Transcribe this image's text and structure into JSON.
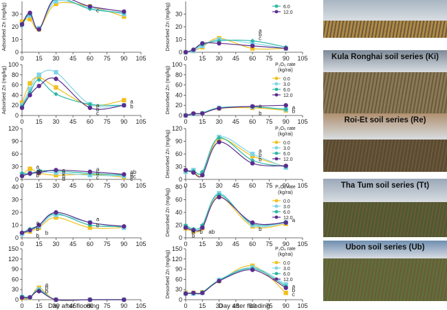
{
  "shared": {
    "xlabel": "Day after flooding",
    "legend_title_line1": "P₂O₅ rate",
    "legend_title_line2": "(kg/rai)",
    "legend_entries": [
      "0.0",
      "3.0",
      "6.0",
      "12.0"
    ],
    "legend_colors": [
      "#f2c01e",
      "#7fd3e8",
      "#2bb7a6",
      "#5b2d8e"
    ],
    "xticks": [
      0,
      15,
      30,
      45,
      60,
      75,
      90,
      105
    ]
  },
  "soils": [
    {
      "label": "",
      "photo": {
        "sky": "#a8b6c2",
        "ground": "#b08a48",
        "horizon": 0.55
      }
    },
    {
      "label": "Kula Ronghai soil series (Ki)",
      "photo": {
        "sky": "#7d8a98",
        "ground": "#8a7a58",
        "horizon": 0.35
      }
    },
    {
      "label": "Roi-Et soil series (Re)",
      "photo": {
        "sky": "#b09070",
        "ground": "#5a4a32",
        "horizon": 0.45
      }
    },
    {
      "label": "Tha Tum soil series (Tt)",
      "photo": {
        "sky": "#9aa8b8",
        "ground": "#4e5a30",
        "horizon": 0.4
      }
    },
    {
      "label": "Ubon soil series (Ub)",
      "photo": {
        "sky": "#6f8fb0",
        "ground": "#5f6f3a",
        "horizon": 0.3
      }
    }
  ],
  "chart_data": [
    {
      "type": "line",
      "ylabel": "Adsorbed Zn (mg/kg)",
      "ylim": [
        0,
        40
      ],
      "yticks": [
        0,
        10,
        20,
        30
      ],
      "x": [
        0,
        7,
        15,
        30,
        60,
        90
      ],
      "series": [
        {
          "values": [
            24,
            26,
            18,
            38,
            36,
            28
          ]
        },
        {
          "values": [
            22,
            29,
            19,
            40,
            35,
            30
          ]
        },
        {
          "values": [
            21,
            30,
            18,
            42,
            34,
            31
          ]
        },
        {
          "values": [
            22,
            31,
            18,
            43,
            36,
            32
          ]
        }
      ],
      "letters": [
        {
          "x": 60,
          "y": 33,
          "t": "c"
        }
      ],
      "legend": false
    },
    {
      "type": "line",
      "ylabel": "Desorbed Zn (mg/kg)",
      "ylim": [
        0,
        40
      ],
      "yticks": [
        0,
        10,
        20,
        30
      ],
      "x": [
        0,
        7,
        15,
        30,
        60,
        90
      ],
      "series": [
        {
          "values": [
            0,
            1,
            4,
            11,
            3,
            3
          ]
        },
        {
          "values": [
            0,
            1,
            5,
            10,
            7,
            3
          ]
        },
        {
          "values": [
            0,
            2,
            6,
            9,
            9,
            4
          ]
        },
        {
          "values": [
            0,
            2,
            7,
            7,
            5,
            3
          ]
        }
      ],
      "letters": [
        {
          "x": 60,
          "y": 17,
          "t": "a"
        },
        {
          "x": 60,
          "y": 14,
          "t": "b"
        },
        {
          "x": 60,
          "y": 11,
          "t": "c"
        }
      ],
      "legend": true,
      "legend_visible": [
        "6.0",
        "12.0"
      ]
    },
    {
      "type": "line",
      "ylabel": "Adsorbed Zn (mg/kg)",
      "ylim": [
        0,
        100
      ],
      "yticks": [
        0,
        20,
        40,
        60,
        80,
        100
      ],
      "x": [
        0,
        7,
        15,
        30,
        60,
        90
      ],
      "series": [
        {
          "values": [
            25,
            63,
            75,
            55,
            20,
            30
          ]
        },
        {
          "values": [
            20,
            52,
            80,
            85,
            22,
            20
          ]
        },
        {
          "values": [
            18,
            45,
            70,
            42,
            22,
            20
          ]
        },
        {
          "values": [
            15,
            40,
            58,
            72,
            15,
            20
          ]
        }
      ],
      "letters": [
        {
          "x": 60,
          "y": 20,
          "t": "a"
        },
        {
          "x": 60,
          "y": 12,
          "t": "b"
        },
        {
          "x": 60,
          "y": 5,
          "t": "c"
        },
        {
          "x": 90,
          "y": 28,
          "t": "a"
        },
        {
          "x": 90,
          "y": 18,
          "t": "b"
        }
      ],
      "legend": false
    },
    {
      "type": "line",
      "ylabel": "Desorbed Zn (mg/kg)",
      "ylim": [
        0,
        100
      ],
      "yticks": [
        0,
        20,
        40,
        60,
        80,
        100
      ],
      "x": [
        0,
        7,
        15,
        30,
        60,
        90
      ],
      "series": [
        {
          "values": [
            0,
            3,
            4,
            14,
            15,
            10
          ]
        },
        {
          "values": [
            0,
            3,
            4,
            15,
            17,
            12
          ]
        },
        {
          "values": [
            0,
            3,
            5,
            15,
            17,
            12
          ]
        },
        {
          "values": [
            0,
            4,
            4,
            14,
            18,
            20
          ]
        }
      ],
      "letters": [
        {
          "x": 60,
          "y": 19,
          "t": "a"
        },
        {
          "x": 60,
          "y": 5,
          "t": "b"
        },
        {
          "x": 90,
          "y": 16,
          "t": "a"
        },
        {
          "x": 90,
          "y": 9,
          "t": "b"
        }
      ],
      "legend": true
    },
    {
      "type": "line",
      "ylabel": "",
      "ylim": [
        0,
        120
      ],
      "yticks": [
        0,
        30,
        60,
        90,
        120
      ],
      "x": [
        0,
        7,
        15,
        30,
        60,
        90
      ],
      "series": [
        {
          "values": [
            10,
            25,
            15,
            10,
            12,
            5
          ]
        },
        {
          "values": [
            12,
            15,
            18,
            16,
            10,
            8
          ]
        },
        {
          "values": [
            15,
            12,
            20,
            20,
            14,
            10
          ]
        },
        {
          "values": [
            8,
            14,
            16,
            22,
            18,
            12
          ]
        }
      ],
      "letters": [
        {
          "x": 7,
          "y": 30,
          "t": "a"
        },
        {
          "x": 7,
          "y": 20,
          "t": "ab"
        },
        {
          "x": 7,
          "y": 10,
          "t": "b"
        },
        {
          "x": 30,
          "y": 22,
          "t": "a"
        },
        {
          "x": 30,
          "y": 16,
          "t": "b"
        },
        {
          "x": 30,
          "y": 8,
          "t": "b"
        },
        {
          "x": 30,
          "y": 2,
          "t": "d"
        },
        {
          "x": 60,
          "y": 24,
          "t": "a"
        },
        {
          "x": 60,
          "y": 15,
          "t": "b"
        },
        {
          "x": 60,
          "y": 5,
          "t": "c"
        },
        {
          "x": 90,
          "y": 18,
          "t": "ab"
        },
        {
          "x": 90,
          "y": 12,
          "t": "b"
        },
        {
          "x": 90,
          "y": 7,
          "t": "bc"
        },
        {
          "x": 90,
          "y": 2,
          "t": "c"
        }
      ],
      "legend": false
    },
    {
      "type": "line",
      "ylabel": "Desorbed Zn (mg/kg)",
      "ylim": [
        0,
        120
      ],
      "yticks": [
        0,
        30,
        60,
        90,
        120
      ],
      "x": [
        0,
        7,
        15,
        30,
        60,
        90
      ],
      "series": [
        {
          "values": [
            20,
            18,
            12,
            95,
            55,
            30
          ]
        },
        {
          "values": [
            18,
            22,
            15,
            100,
            60,
            28
          ]
        },
        {
          "values": [
            20,
            20,
            18,
            98,
            45,
            30
          ]
        },
        {
          "values": [
            22,
            16,
            10,
            88,
            38,
            32
          ]
        }
      ],
      "letters": [
        {
          "x": 60,
          "y": 68,
          "t": "a"
        },
        {
          "x": 60,
          "y": 58,
          "t": "b"
        },
        {
          "x": 60,
          "y": 48,
          "t": "b"
        }
      ],
      "legend": true
    },
    {
      "type": "line",
      "ylabel": "",
      "ylim": [
        0,
        40
      ],
      "yticks": [
        0,
        10,
        20,
        30,
        40
      ],
      "x": [
        0,
        7,
        15,
        30,
        60,
        90
      ],
      "series": [
        {
          "values": [
            3,
            5,
            8,
            16,
            8,
            8
          ]
        },
        {
          "values": [
            3,
            6,
            9,
            18,
            12,
            8
          ]
        },
        {
          "values": [
            4,
            7,
            10,
            19,
            10,
            9
          ]
        },
        {
          "values": [
            4,
            6,
            10,
            20,
            12,
            9
          ]
        }
      ],
      "letters": [
        {
          "x": 7,
          "y": 12,
          "t": "a"
        },
        {
          "x": 7,
          "y": 7,
          "t": "b"
        },
        {
          "x": 7,
          "y": 2,
          "t": "b"
        },
        {
          "x": 15,
          "y": 4,
          "t": "b"
        },
        {
          "x": 60,
          "y": 15,
          "t": "a"
        },
        {
          "x": 60,
          "y": 10,
          "t": "b"
        }
      ],
      "legend": false
    },
    {
      "type": "line",
      "ylabel": "Desorbed Zn (mg/kg)",
      "ylim": [
        0,
        80
      ],
      "yticks": [
        0,
        20,
        40,
        60,
        80
      ],
      "x": [
        0,
        7,
        15,
        30,
        60,
        90
      ],
      "series": [
        {
          "values": [
            15,
            10,
            15,
            65,
            18,
            22
          ]
        },
        {
          "values": [
            18,
            12,
            18,
            70,
            20,
            24
          ]
        },
        {
          "values": [
            20,
            14,
            20,
            68,
            22,
            25
          ]
        },
        {
          "values": [
            16,
            12,
            16,
            64,
            24,
            24
          ]
        }
      ],
      "letters": [
        {
          "x": 0,
          "y": 10,
          "t": "a"
        },
        {
          "x": 0,
          "y": 4,
          "t": "b"
        },
        {
          "x": 7,
          "y": 10,
          "t": "b"
        },
        {
          "x": 15,
          "y": 10,
          "t": "ab"
        },
        {
          "x": 60,
          "y": 14,
          "t": "b"
        },
        {
          "x": 90,
          "y": 28,
          "t": "a"
        }
      ],
      "legend": true
    },
    {
      "type": "line",
      "ylabel": "",
      "ylim": [
        0,
        150
      ],
      "yticks": [
        0,
        30,
        60,
        90,
        120,
        150
      ],
      "x": [
        0,
        7,
        15,
        30,
        60,
        90
      ],
      "series": [
        {
          "values": [
            5,
            5,
            35,
            0,
            0,
            0
          ]
        },
        {
          "values": [
            8,
            6,
            30,
            0,
            0,
            0
          ]
        },
        {
          "values": [
            10,
            8,
            28,
            0,
            0,
            0
          ]
        },
        {
          "values": [
            6,
            7,
            25,
            0,
            0,
            0
          ]
        }
      ],
      "letters": [
        {
          "x": 15,
          "y": 45,
          "t": "a"
        },
        {
          "x": 15,
          "y": 35,
          "t": "b"
        },
        {
          "x": 15,
          "y": 25,
          "t": "b"
        }
      ],
      "legend": false
    },
    {
      "type": "line",
      "ylabel": "Desorbed Zn (mg/kg)",
      "ylim": [
        0,
        150
      ],
      "yticks": [
        0,
        30,
        60,
        90,
        120,
        150
      ],
      "x": [
        0,
        7,
        15,
        30,
        60,
        90
      ],
      "series": [
        {
          "values": [
            20,
            20,
            22,
            55,
            100,
            20
          ]
        },
        {
          "values": [
            18,
            18,
            20,
            58,
            95,
            45
          ]
        },
        {
          "values": [
            20,
            18,
            22,
            57,
            92,
            40
          ]
        },
        {
          "values": [
            18,
            20,
            20,
            55,
            88,
            35
          ]
        }
      ],
      "letters": [
        {
          "x": 90,
          "y": 40,
          "t": "a"
        },
        {
          "x": 90,
          "y": 28,
          "t": "b"
        },
        {
          "x": 90,
          "y": 16,
          "t": "c"
        }
      ],
      "legend": true
    }
  ]
}
